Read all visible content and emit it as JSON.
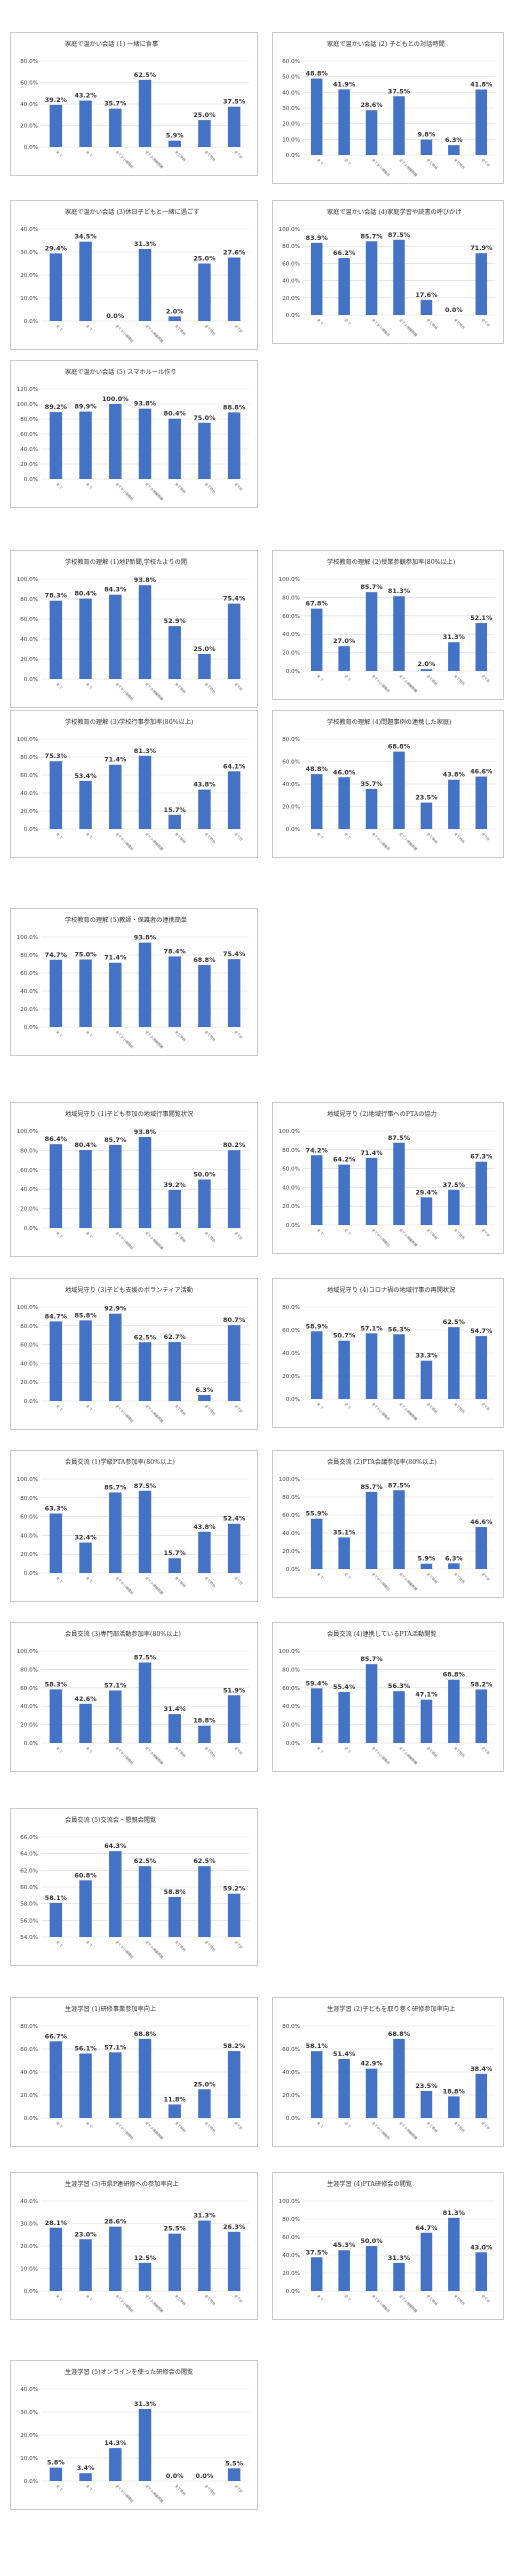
{
  "charts": [
    {
      "id": "c1",
      "title": "家庭で温かい会話 (1) 一緒に食事",
      "values": [
        39.2,
        43.2,
        35.7,
        62.5,
        5.9,
        25.0,
        37.5
      ],
      "ticks": [
        "0.0%",
        "20.0%",
        "40.0%",
        "60.0%",
        "80.0%"
      ],
      "ymax": 80,
      "step": 20
    },
    {
      "id": "c2",
      "title": "家庭で温かい会話 (2) 子どもとの対話時間",
      "values": [
        48.8,
        41.9,
        28.6,
        37.5,
        9.8,
        6.3,
        41.8
      ],
      "ticks": [
        "0.0%",
        "10.0%",
        "20.0%",
        "30.0%",
        "40.0%",
        "50.0%",
        "60.0%"
      ],
      "ymax": 60,
      "step": 10
    },
    {
      "id": "c3",
      "title": "家庭で温かい会話 (3)休日子どもと一緒に過ごす",
      "values": [
        29.4,
        34.5,
        0.0,
        31.3,
        2.0,
        25.0,
        27.6
      ],
      "ticks": [
        "0.0%",
        "10.0%",
        "20.0%",
        "30.0%",
        "40.0%"
      ],
      "ymax": 40,
      "step": 10
    },
    {
      "id": "c4",
      "title": "家庭で温かい会話 (4)家庭学習や読書の呼びかけ",
      "values": [
        83.9,
        66.2,
        85.7,
        87.5,
        17.6,
        0.0,
        71.9
      ],
      "ticks": [
        "0.0%",
        "20.0%",
        "40.0%",
        "60.0%",
        "80.0%",
        "100.0%"
      ],
      "ymax": 100,
      "step": 20
    },
    {
      "id": "c5",
      "title": "家庭で温かい会話 (5) スマホルール作り",
      "values": [
        89.2,
        89.9,
        100.0,
        93.8,
        80.4,
        75.0,
        88.8
      ],
      "ticks": [
        "0.0%",
        "20.0%",
        "40.0%",
        "60.0%",
        "80.0%",
        "100.0%",
        "120.0%"
      ],
      "ymax": 120,
      "step": 20
    },
    {
      "id": "c6",
      "title": "学校教育の理解 (1)地P新聞,学校たよりの閲",
      "values": [
        78.3,
        80.4,
        84.3,
        93.8,
        52.9,
        25.0,
        75.4
      ],
      "ticks": [
        "0.0%",
        "20.0%",
        "40.0%",
        "60.0%",
        "80.0%",
        "100.0%"
      ],
      "ymax": 100,
      "step": 20
    },
    {
      "id": "c7",
      "title": "学校教育の理解 (2)授業参観参加率(80%以上)",
      "values": [
        67.8,
        27.0,
        85.7,
        81.3,
        2.0,
        31.3,
        52.1
      ],
      "ticks": [
        "0.0%",
        "20.0%",
        "40.0%",
        "60.0%",
        "80.0%",
        "100.0%"
      ],
      "ymax": 100,
      "step": 20
    },
    {
      "id": "c8",
      "title": "学校教育の理解 (3)学校行事参加率(80%以上)",
      "values": [
        75.3,
        53.4,
        71.4,
        81.3,
        15.7,
        43.8,
        64.1
      ],
      "ticks": [
        "0.0%",
        "20.0%",
        "40.0%",
        "60.0%",
        "80.0%",
        "100.0%"
      ],
      "ymax": 100,
      "step": 20
    },
    {
      "id": "c9",
      "title": "学校教育の理解 (4)問題事例の連携した家庭)",
      "values": [
        48.8,
        46.0,
        35.7,
        68.8,
        23.5,
        43.8,
        46.6
      ],
      "ticks": [
        "0.0%",
        "20.0%",
        "40.0%",
        "60.0%",
        "80.0%"
      ],
      "ymax": 80,
      "step": 20
    },
    {
      "id": "c10",
      "title": "学校教育の理解 (5)教師・保護者の連携簡単",
      "values": [
        74.7,
        75.0,
        71.4,
        93.8,
        78.4,
        68.8,
        75.4
      ],
      "ticks": [
        "0.0%",
        "20.0%",
        "40.0%",
        "60.0%",
        "80.0%",
        "100.0%"
      ],
      "ymax": 100,
      "step": 20
    },
    {
      "id": "c11",
      "title": "地域見守り (1)子ども参加の地域行事閲覧状況",
      "values": [
        86.4,
        80.4,
        85.7,
        93.8,
        39.2,
        50.0,
        80.2
      ],
      "ticks": [
        "0.0%",
        "20.0%",
        "40.0%",
        "60.0%",
        "80.0%",
        "100.0%"
      ],
      "ymax": 100,
      "step": 20
    },
    {
      "id": "c12",
      "title": "地域見守り (2)地域行事へのPTAの協力",
      "values": [
        74.2,
        64.2,
        71.4,
        87.5,
        29.4,
        37.5,
        67.3
      ],
      "ticks": [
        "0.0%",
        "20.0%",
        "40.0%",
        "60.0%",
        "80.0%",
        "100.0%"
      ],
      "ymax": 100,
      "step": 20
    },
    {
      "id": "c13",
      "title": "地域見守り (3)子ども支援のボランティア活動",
      "values": [
        84.7,
        85.8,
        92.9,
        62.5,
        62.7,
        6.3,
        80.7
      ],
      "ticks": [
        "0.0%",
        "20.0%",
        "40.0%",
        "60.0%",
        "80.0%",
        "100.0%"
      ],
      "ymax": 100,
      "step": 20
    },
    {
      "id": "c14",
      "title": "地域見守り (4)コロナ禍の地域行事の再開状況",
      "values": [
        58.9,
        50.7,
        57.1,
        56.3,
        33.3,
        62.5,
        54.7
      ],
      "ticks": [
        "0.0%",
        "20.0%",
        "40.0%",
        "60.0%",
        "80.0%"
      ],
      "ymax": 80,
      "step": 20
    },
    {
      "id": "c15",
      "title": "会員交流 (1)学級PTA参加率(80%以上)",
      "values": [
        63.3,
        32.4,
        85.7,
        87.5,
        15.7,
        43.8,
        52.4
      ],
      "ticks": [
        "0.0%",
        "20.0%",
        "40.0%",
        "60.0%",
        "80.0%",
        "100.0%"
      ],
      "ymax": 100,
      "step": 20
    },
    {
      "id": "c16",
      "title": "会員交流 (2)PTA会議参加率(80%以上)",
      "values": [
        55.9,
        35.1,
        85.7,
        87.5,
        5.9,
        6.3,
        46.6
      ],
      "ticks": [
        "0.0%",
        "20.0%",
        "40.0%",
        "60.0%",
        "80.0%",
        "100.0%"
      ],
      "ymax": 100,
      "step": 20
    },
    {
      "id": "c17",
      "title": "会員交流 (3)専門部活動参加率(80%以上)",
      "values": [
        58.3,
        42.6,
        57.1,
        87.5,
        31.4,
        18.8,
        51.9
      ],
      "ticks": [
        "0.0%",
        "20.0%",
        "40.0%",
        "60.0%",
        "80.0%",
        "100.0%"
      ],
      "ymax": 100,
      "step": 20
    },
    {
      "id": "c18",
      "title": "会員交流 (4)連携しているPTA活動閲覧",
      "values": [
        59.4,
        55.4,
        85.7,
        56.3,
        47.1,
        68.8,
        58.2
      ],
      "ticks": [
        "0.0%",
        "20.0%",
        "40.0%",
        "60.0%",
        "80.0%",
        "100.0%"
      ],
      "ymax": 100,
      "step": 20
    },
    {
      "id": "c19",
      "title": "会員交流 (5)交流会・懇親会閲覧",
      "values": [
        58.1,
        60.8,
        64.3,
        62.5,
        58.8,
        62.5,
        59.2
      ],
      "ticks": [
        "54.0%",
        "56.0%",
        "58.0%",
        "60.0%",
        "62.0%",
        "64.0%",
        "66.0%"
      ],
      "ymin": 54,
      "ymax": 66,
      "step": 2
    },
    {
      "id": "c20",
      "title": "生涯学習 (1)研修事業参加率向上",
      "values": [
        66.7,
        56.1,
        57.1,
        68.8,
        11.8,
        25.0,
        58.2
      ],
      "ticks": [
        "0.0%",
        "20.0%",
        "40.0%",
        "60.0%",
        "80.0%"
      ],
      "ymax": 80,
      "step": 20
    },
    {
      "id": "c21",
      "title": "生涯学習 (2)子どもを取り巻く研修参加率向上",
      "values": [
        58.1,
        51.4,
        42.9,
        68.8,
        23.5,
        18.8,
        38.4
      ],
      "ticks": [
        "0.0%",
        "20.0%",
        "40.0%",
        "60.0%",
        "80.0%"
      ],
      "ymax": 80,
      "step": 20
    },
    {
      "id": "c22",
      "title": "生涯学習 (3)市県P連研修への参加率向上",
      "values": [
        28.1,
        23.0,
        28.6,
        12.5,
        25.5,
        31.3,
        26.3
      ],
      "ticks": [
        "0.0%",
        "10.0%",
        "20.0%",
        "30.0%",
        "40.0%"
      ],
      "ymax": 40,
      "step": 10
    },
    {
      "id": "c23",
      "title": "生涯学習 (4)PTA研修会の閲覧",
      "values": [
        37.5,
        45.3,
        50.0,
        31.3,
        64.7,
        81.3,
        43.0
      ],
      "ticks": [
        "0.0%",
        "20.0%",
        "40.0%",
        "60.0%",
        "80.0%",
        "100.0%"
      ],
      "ymax": 100,
      "step": 20
    },
    {
      "id": "c24",
      "title": "生涯学習 (5)オンラインを使った研修会の閲覧",
      "values": [
        5.8,
        3.4,
        14.3,
        31.3,
        0.0,
        0.0,
        5.5
      ],
      "ticks": [
        "0.0%",
        "10.0%",
        "20.0%",
        "30.0%",
        "40.0%"
      ],
      "ymax": 40,
      "step": 10
    }
  ],
  "categories": [
    "全 て",
    "全 て",
    "全てが小規模校",
    "全て小規模教職",
    "全て単純",
    "全て特色",
    "全て計"
  ],
  "colors": {
    "bar": "#4472c4",
    "grid": "#d9d9d9",
    "border": "#c9c9c9"
  }
}
